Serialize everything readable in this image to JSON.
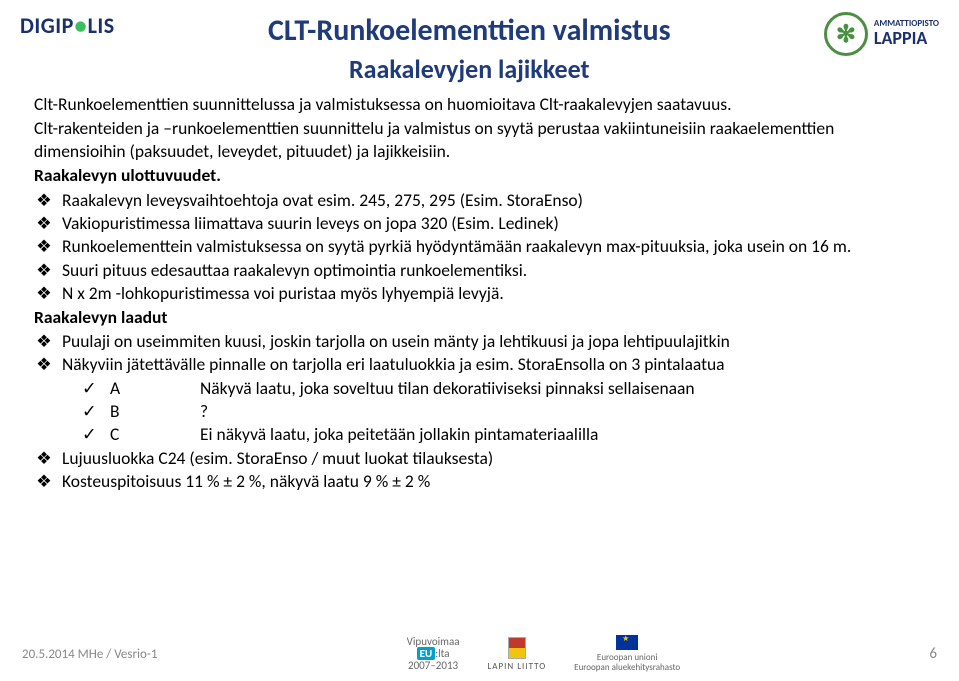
{
  "header": {
    "logo_left_text": "DIGIP",
    "logo_left_o": "●",
    "logo_left_suffix": "LIS",
    "main_title": "CLT-Runkoelementtien valmistus",
    "sub_title": "Raakalevyjen lajikkeet",
    "logo_right_top": "AMMATTIOPISTO",
    "logo_right_main": "LAPPIA"
  },
  "intro": {
    "p1": "Clt-Runkoelementtien suunnittelussa ja valmistuksessa on huomioitava Clt-raakalevyjen saatavuus.",
    "p2": "Clt-rakenteiden ja –runkoelementtien suunnittelu ja valmistus on syytä perustaa vakiintuneisiin raakaelementtien dimensioihin (paksuudet, leveydet, pituudet) ja lajikkeisiin.",
    "p3": "Raakalevyn ulottuvuudet."
  },
  "bullets": {
    "b1": "Raakalevyn leveysvaihtoehtoja ovat esim. 245, 275, 295  (Esim. StoraEnso)",
    "b2": "Vakiopuristimessa liimattava suurin leveys on jopa 320   (Esim. Ledinek)",
    "b3": "Runkoelementtein valmistuksessa on syytä pyrkiä hyödyntämään raakalevyn max-pituuksia, joka usein on 16 m.",
    "b4": "Suuri pituus edesauttaa raakalevyn optimointia runkoelementiksi.",
    "b5": "N x 2m -lohkopuristimessa voi puristaa myös lyhyempiä levyjä."
  },
  "section2_title": "Raakalevyn laadut",
  "bullets2": {
    "b1": "Puulaji on useimmiten kuusi, joskin tarjolla on usein mänty ja lehtikuusi ja jopa lehtipuulajitkin",
    "b2": "Näkyviin jätettävälle pinnalle on tarjolla eri laatuluokkia ja esim. StoraEnsolla on 3 pintalaatua"
  },
  "grades": {
    "a_label": "A",
    "a_desc": "Näkyvä laatu, joka soveltuu tilan dekoratiiviseksi pinnaksi sellaisenaan",
    "b_label": "B",
    "b_desc": "?",
    "c_label": "C",
    "c_desc": "Ei näkyvä laatu, joka peitetään jollakin pintamateriaalilla"
  },
  "bullets3": {
    "b1": "Lujuusluokka C24 (esim. StoraEnso / muut luokat tilauksesta)",
    "b2": "Kosteuspitoisuus 11 % ± 2 %, näkyvä laatu 9 % ± 2 %"
  },
  "footer": {
    "date_author": "20.5.2014  MHe / Vesrio-1",
    "vipu_top": "Vipuvoimaa",
    "vipu_eu": "EU",
    "vipu_suffix": ":lta",
    "vipu_years": "2007–2013",
    "lapin": "LAPIN LIITTO",
    "eu_top": "Euroopan unioni",
    "eu_bottom": "Euroopan aluekehitysrahasto",
    "page": "6"
  }
}
